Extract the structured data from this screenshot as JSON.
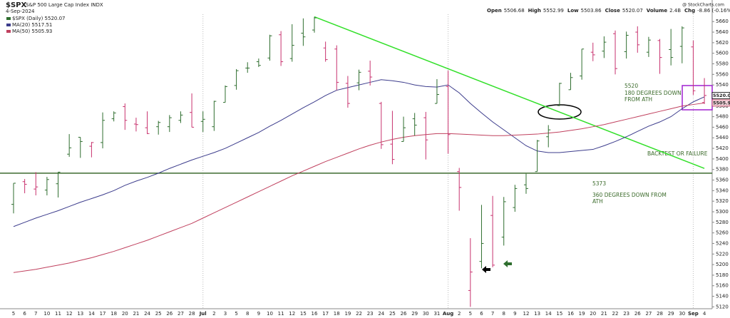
{
  "chart_data": {
    "type": "ohlc",
    "title": "$SPX",
    "subtitle": "S&P 500 Large Cap Index INDX",
    "date": "4-Sep-2024",
    "source": "@ StockCharts.com",
    "info": [
      {
        "label": "Open",
        "value": 5506.68
      },
      {
        "label": "High",
        "value": 5552.99
      },
      {
        "label": "Low",
        "value": 5503.86
      },
      {
        "label": "Close",
        "value": 5520.07
      },
      {
        "label": "Volume",
        "value": "2.4B"
      },
      {
        "label": "Chg",
        "value": "-8.86 (-0.16%)"
      }
    ],
    "categories": [
      "5",
      "6",
      "7",
      "10",
      "11",
      "12",
      "13",
      "14",
      "17",
      "18",
      "20",
      "21",
      "24",
      "25",
      "26",
      "27",
      "28",
      "Jul",
      "2",
      "3",
      "5",
      "8",
      "9",
      "10",
      "11",
      "12",
      "15",
      "16",
      "17",
      "18",
      "19",
      "22",
      "23",
      "24",
      "25",
      "26",
      "29",
      "30",
      "31",
      "Aug",
      "2",
      "5",
      "6",
      "7",
      "8",
      "9",
      "12",
      "13",
      "14",
      "15",
      "16",
      "19",
      "20",
      "21",
      "22",
      "23",
      "26",
      "27",
      "28",
      "29",
      "30",
      "Sep",
      "4"
    ],
    "series": [
      {
        "name": "$SPX (Daily) 5520.07",
        "up_color": "#2f6e2f",
        "down_color": "#c8326e",
        "open": [
          5314,
          5357,
          5343,
          5341,
          5353,
          5409,
          5441,
          5424,
          5431,
          5476,
          5499,
          5466,
          5459,
          5461,
          5461,
          5473,
          5488,
          5471,
          5461,
          5507,
          5539,
          5572,
          5584,
          5591,
          5635,
          5590,
          5638,
          5644,
          5610,
          5608,
          5543,
          5544,
          5566,
          5505,
          5428,
          5433,
          5476,
          5478,
          5505,
          5537,
          5376,
          5151,
          5206,
          5293,
          5252,
          5308,
          5351,
          5376,
          5442,
          5501,
          5531,
          5557,
          5602,
          5604,
          5637,
          5603,
          5640,
          5602,
          5624,
          5607,
          5613,
          5612,
          5506.68
        ],
        "high": [
          5354,
          5362,
          5375,
          5366,
          5375,
          5447,
          5441,
          5432,
          5488,
          5490,
          5505,
          5478,
          5490,
          5472,
          5483,
          5490,
          5524,
          5490,
          5510,
          5539,
          5570,
          5583,
          5590,
          5635,
          5642,
          5655,
          5666,
          5669,
          5622,
          5615,
          5557,
          5569,
          5586,
          5508,
          5491,
          5480,
          5487,
          5489,
          5551,
          5567,
          5383,
          5250,
          5313,
          5330,
          5328,
          5351,
          5372,
          5436,
          5464,
          5544,
          5563,
          5608,
          5620,
          5632,
          5643,
          5641,
          5651,
          5631,
          5627,
          5646,
          5651,
          5624,
          5552.99
        ],
        "low": [
          5297,
          5335,
          5331,
          5331,
          5327,
          5404,
          5402,
          5403,
          5420,
          5471,
          5455,
          5452,
          5447,
          5446,
          5451,
          5468,
          5460,
          5451,
          5453,
          5507,
          5531,
          5563,
          5574,
          5586,
          5576,
          5584,
          5614,
          5639,
          5584,
          5530,
          5497,
          5530,
          5539,
          5419,
          5390,
          5433,
          5444,
          5399,
          5505,
          5410,
          5302,
          5120,
          5193,
          5195,
          5236,
          5300,
          5334,
          5376,
          5422,
          5500,
          5531,
          5550,
          5585,
          5591,
          5560,
          5590,
          5601,
          5593,
          5561,
          5577,
          5581,
          5521,
          5503.86
        ],
        "close": [
          5354,
          5352,
          5347,
          5361,
          5375,
          5421,
          5433,
          5431,
          5473,
          5487,
          5473,
          5465,
          5448,
          5469,
          5478,
          5483,
          5460,
          5475,
          5509,
          5537,
          5567,
          5572,
          5577,
          5633,
          5584,
          5615,
          5631,
          5667,
          5588,
          5545,
          5505,
          5564,
          5555,
          5427,
          5399,
          5459,
          5464,
          5436,
          5522,
          5446,
          5346,
          5186,
          5240,
          5199,
          5319,
          5344,
          5344,
          5434,
          5455,
          5543,
          5554,
          5608,
          5597,
          5621,
          5571,
          5634,
          5616,
          5625,
          5592,
          5592,
          5648,
          5529,
          5520.07
        ]
      },
      {
        "name": "MA(20) 5517.51",
        "color": "#3c3c8c",
        "values": [
          5272,
          5280,
          5288,
          5295,
          5302,
          5310,
          5318,
          5325,
          5332,
          5340,
          5350,
          5358,
          5365,
          5373,
          5382,
          5390,
          5398,
          5405,
          5412,
          5420,
          5430,
          5440,
          5450,
          5462,
          5473,
          5485,
          5497,
          5508,
          5520,
          5530,
          5535,
          5540,
          5545,
          5550,
          5548,
          5545,
          5540,
          5537,
          5536,
          5540,
          5525,
          5505,
          5487,
          5470,
          5455,
          5440,
          5425,
          5415,
          5412,
          5412,
          5414,
          5416,
          5418,
          5425,
          5433,
          5442,
          5452,
          5462,
          5470,
          5480,
          5495,
          5508,
          5517.51
        ]
      },
      {
        "name": "MA(50) 5505.93",
        "color": "#c0405e",
        "values": [
          5185,
          5188,
          5191,
          5195,
          5199,
          5203,
          5208,
          5213,
          5219,
          5225,
          5232,
          5239,
          5246,
          5254,
          5262,
          5270,
          5278,
          5288,
          5298,
          5308,
          5318,
          5328,
          5338,
          5348,
          5358,
          5368,
          5377,
          5386,
          5395,
          5403,
          5411,
          5419,
          5426,
          5432,
          5437,
          5441,
          5444,
          5446,
          5448,
          5448,
          5447,
          5446,
          5445,
          5444,
          5444,
          5445,
          5446,
          5447,
          5449,
          5451,
          5454,
          5457,
          5461,
          5465,
          5470,
          5475,
          5480,
          5485,
          5490,
          5495,
          5500,
          5503,
          5505.93
        ]
      }
    ],
    "ylim": [
      5107,
      5690
    ],
    "yticks": [
      5120,
      5140,
      5160,
      5180,
      5200,
      5220,
      5240,
      5260,
      5280,
      5300,
      5320,
      5340,
      5360,
      5380,
      5400,
      5420,
      5440,
      5460,
      5480,
      5500,
      5520,
      5540,
      5560,
      5580,
      5600,
      5620,
      5640,
      5660
    ],
    "grid": false,
    "hlines": [
      {
        "value": 5373,
        "color": "#3d6b2f"
      }
    ],
    "trendlines": [
      {
        "x1": 27,
        "y1": 5669,
        "x2": 62,
        "y2": 5382,
        "color": "#33e02a"
      }
    ],
    "annotations": [
      {
        "lines": [
          "5520",
          "180 DEGREES DOWN",
          "FROM ATH"
        ]
      },
      {
        "lines": [
          "BACKTEST OR FAILURE"
        ]
      },
      {
        "lines": [
          "5373",
          "360 DEGREES DOWN FROM",
          "ATH"
        ]
      }
    ]
  }
}
